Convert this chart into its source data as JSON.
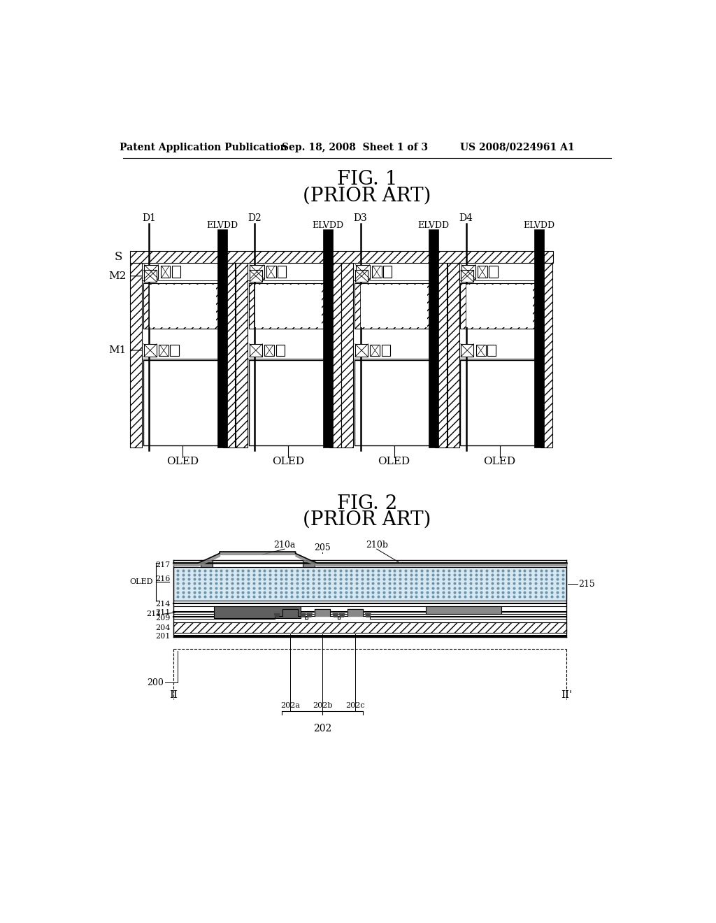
{
  "bg_color": "#ffffff",
  "header_left": "Patent Application Publication",
  "header_mid": "Sep. 18, 2008  Sheet 1 of 3",
  "header_right": "US 2008/0224961 A1",
  "fig1_title": "FIG. 1",
  "fig1_subtitle": "(PRIOR ART)",
  "fig2_title": "FIG. 2",
  "fig2_subtitle": "(PRIOR ART)"
}
